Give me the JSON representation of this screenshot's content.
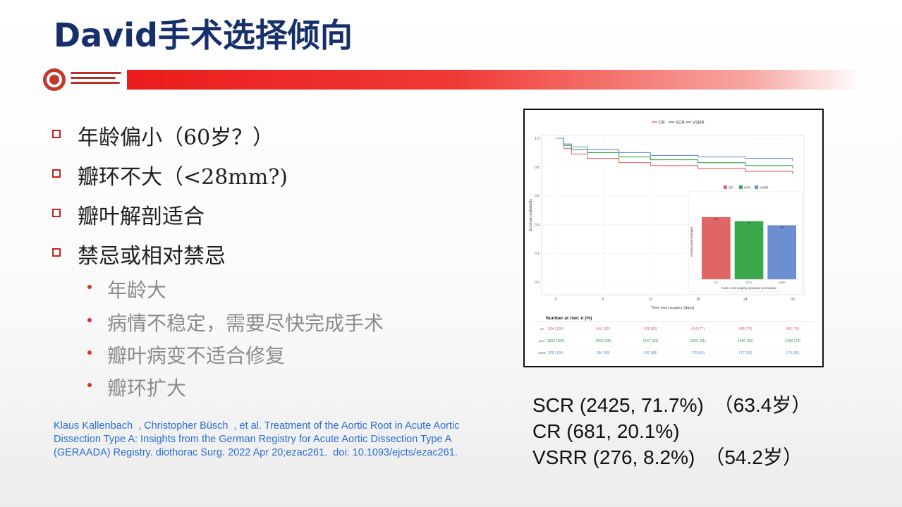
{
  "title": "David手术选择倾向",
  "bullets": [
    {
      "text": "年龄偏小（60岁？）"
    },
    {
      "text": "瓣环不大（<28mm?)"
    },
    {
      "text": "瓣叶解剖适合"
    },
    {
      "text": "禁忌或相对禁忌"
    }
  ],
  "sub_bullets": [
    {
      "text": "年龄大"
    },
    {
      "text": "病情不稳定，需要尽快完成手术"
    },
    {
      "text": "瓣叶病变不适合修复"
    },
    {
      "text": "瓣环扩大"
    }
  ],
  "citation": "Klaus Kallenbach  , Christopher Büsch  , et al. Treatment of the Aortic Root in Acute Aortic Dissection Type A: Insights from the German Registry for Acute Aortic Dissection Type A (GERAADA) Registry. diothorac Surg. 2022 Apr 20;ezac261.  doi: 10.1093/ejcts/ezac261.",
  "stats": [
    {
      "label": "SCR (2425, 71.7%)",
      "extra": "（63.4岁）"
    },
    {
      "label": "CR (681, 20.1%)",
      "extra": ""
    },
    {
      "label": "VSRR (276, 8.2%)",
      "extra": "（54.2岁）"
    }
  ],
  "colors": {
    "title": "#17306b",
    "accent_red": "#e8231f",
    "citation": "#2a6fd0",
    "CR": "#e06666",
    "SCR": "#3aa64a",
    "VSRR": "#6b8fd0"
  },
  "chart_data": [
    {
      "type": "line",
      "legend": [
        "CR",
        "SCR",
        "VSRR"
      ],
      "xlabel": "Time from surgery (days)",
      "ylabel": "Survival probability",
      "x_ticks": [
        "0",
        "6",
        "12",
        "18",
        "24",
        "30"
      ],
      "y_ticks": [
        "0.0",
        "0.2",
        "0.4",
        "0.6",
        "0.8",
        "1.0"
      ],
      "xlim": [
        0,
        30
      ],
      "ylim": [
        0,
        1
      ],
      "series": [
        {
          "name": "CR",
          "x": [
            0,
            1,
            2,
            4,
            8,
            12,
            18,
            24,
            30
          ],
          "values": [
            1.0,
            0.93,
            0.89,
            0.86,
            0.83,
            0.81,
            0.79,
            0.77,
            0.75
          ]
        },
        {
          "name": "SCR",
          "x": [
            0,
            1,
            2,
            4,
            8,
            12,
            18,
            24,
            30
          ],
          "values": [
            1.0,
            0.95,
            0.92,
            0.9,
            0.87,
            0.85,
            0.83,
            0.81,
            0.79
          ]
        },
        {
          "name": "VSRR",
          "x": [
            0,
            1,
            2,
            4,
            8,
            12,
            18,
            24,
            30
          ],
          "values": [
            1.0,
            0.96,
            0.94,
            0.92,
            0.9,
            0.88,
            0.87,
            0.86,
            0.84
          ]
        }
      ],
      "risk_table": {
        "title": "Number at risk: n (%)",
        "rows": [
          {
            "label": "CR",
            "values": [
              "534 (100)",
              "440 (82)",
              "428 (80)",
              "414 (77)",
              "408 (76)",
              "402 (75)"
            ]
          },
          {
            "label": "SCR",
            "values": [
              "1803 (100)",
              "1590 (88)",
              "1547 (83)",
              "1500 (81)",
              "1480 (80)",
              "1460 (79)"
            ]
          },
          {
            "label": "VSRR",
            "values": [
              "208 (100)",
              "186 (89)",
              "183 (88)",
              "179 (86)",
              "177 (85)",
              "176 (85)"
            ]
          }
        ]
      }
    },
    {
      "type": "bar",
      "categories": [
        "CR",
        "SCR",
        "VSRR"
      ],
      "values": [
        76,
        71,
        66
      ],
      "ylim": [
        0,
        100
      ],
      "legend": [
        "CR",
        "SCR",
        "VSRR"
      ],
      "xlabel": "Aortic root surgery operation procedure",
      "ylabel": "Survival (percentage)"
    }
  ]
}
